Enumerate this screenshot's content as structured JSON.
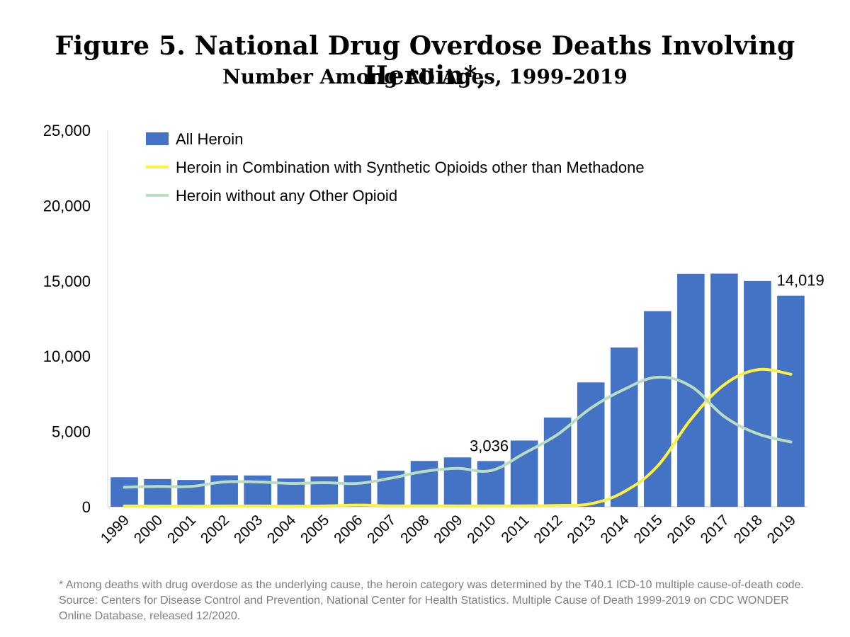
{
  "title": "Figure 5. National Drug Overdose Deaths Involving Heroin*,",
  "subtitle": "Number Among All Ages, 1999-2019",
  "footnote": "* Among deaths with drug overdose as the underlying cause, the heroin category was determined by the T40.1 ICD-10 multiple cause-of-death code. Source: Centers for Disease Control and Prevention, National Center for Health Statistics. Multiple Cause of Death 1999-2019 on CDC WONDER Online Database, released 12/2020.",
  "chart_data": {
    "type": "bar",
    "title": "Figure 5. National Drug Overdose Deaths Involving Heroin*, Number Among All Ages, 1999-2019",
    "xlabel": "",
    "ylabel": "",
    "ylim": [
      0,
      25000
    ],
    "yticks": [
      0,
      5000,
      10000,
      15000,
      20000,
      25000
    ],
    "ytick_labels": [
      "0",
      "5,000",
      "10,000",
      "15,000",
      "20,000",
      "25,000"
    ],
    "grid": false,
    "legend_position": "top-left",
    "categories": [
      "1999",
      "2000",
      "2001",
      "2002",
      "2003",
      "2004",
      "2005",
      "2006",
      "2007",
      "2008",
      "2009",
      "2010",
      "2011",
      "2012",
      "2013",
      "2014",
      "2015",
      "2016",
      "2017",
      "2018",
      "2019"
    ],
    "series": [
      {
        "name": "All Heroin",
        "type": "bar",
        "color": "#4472C4",
        "values": [
          1960,
          1842,
          1779,
          2089,
          2080,
          1878,
          2009,
          2088,
          2399,
          3041,
          3278,
          3036,
          4397,
          5925,
          8257,
          10574,
          12989,
          15469,
          15482,
          14996,
          14019
        ]
      },
      {
        "name": "Heroin in Combination with Synthetic Opioids other than Methadone",
        "type": "line",
        "color": "#FFF23D",
        "values": [
          50,
          45,
          40,
          50,
          50,
          45,
          50,
          110,
          60,
          60,
          55,
          60,
          60,
          90,
          200,
          1000,
          2700,
          5800,
          8100,
          9100,
          8800
        ]
      },
      {
        "name": "Heroin without any Other Opioid",
        "type": "line",
        "color": "#B8DDC1",
        "values": [
          1300,
          1350,
          1350,
          1650,
          1650,
          1550,
          1600,
          1550,
          1900,
          2350,
          2550,
          2400,
          3550,
          4800,
          6550,
          7800,
          8600,
          8000,
          6000,
          4850,
          4300
        ]
      }
    ],
    "annotations": [
      {
        "category": "2010",
        "text": "3,036"
      },
      {
        "category": "2019",
        "text": "14,019"
      }
    ]
  }
}
